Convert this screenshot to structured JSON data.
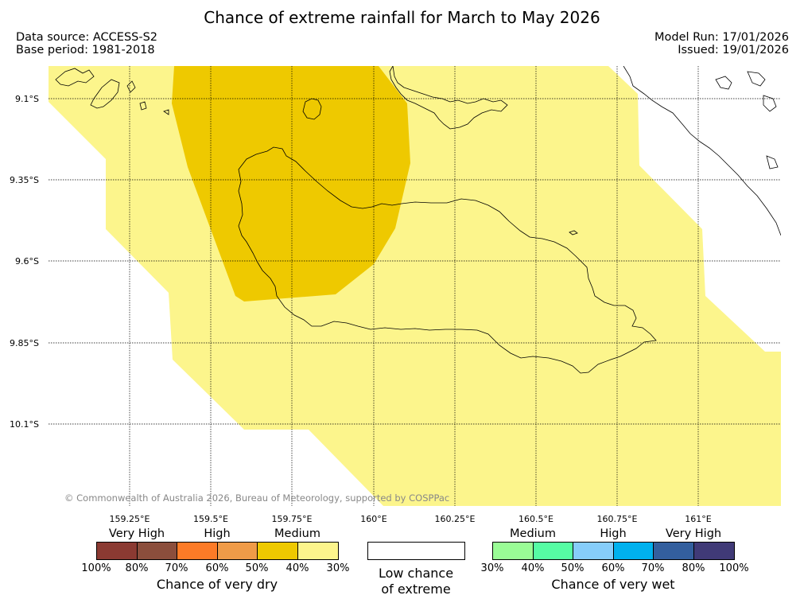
{
  "title": "Chance of extreme rainfall for March to May 2026",
  "source": {
    "data_source": "Data source: ACCESS-S2",
    "base_period": "Base period: 1981-2018",
    "model_run": "Model Run: 17/01/2026",
    "issued": "Issued: 19/01/2026"
  },
  "axes": {
    "lat_labels": [
      "9.1°S",
      "9.35°S",
      "9.6°S",
      "9.85°S",
      "10.1°S"
    ],
    "lon_labels": [
      "159.25°E",
      "159.5°E",
      "159.75°E",
      "160°E",
      "160.25°E",
      "160.5°E",
      "160.75°E",
      "161°E"
    ]
  },
  "copyright": "© Commonwealth of Australia 2026, Bureau of Meteorology, supported by COSPPac",
  "legend": {
    "dry": {
      "categories": [
        "Very High",
        "High",
        "Medium"
      ],
      "colors": [
        "#8b3a32",
        "#8b4e3c",
        "#fc7b27",
        "#ef9b48",
        "#eec900",
        "#fcf58c"
      ],
      "ticks": [
        "100%",
        "80%",
        "70%",
        "60%",
        "50%",
        "40%",
        "30%"
      ],
      "title": "Chance of very dry"
    },
    "neutral": {
      "title_line1": "Low chance",
      "title_line2": "of extreme",
      "color": "#ffffff"
    },
    "wet": {
      "categories": [
        "Medium",
        "High",
        "Very High"
      ],
      "colors": [
        "#9afc96",
        "#56fca4",
        "#86cdfa",
        "#00b1ee",
        "#335f9e",
        "#403a77"
      ],
      "ticks": [
        "30%",
        "40%",
        "50%",
        "60%",
        "70%",
        "80%",
        "100%"
      ],
      "title": "Chance of very wet"
    }
  }
}
